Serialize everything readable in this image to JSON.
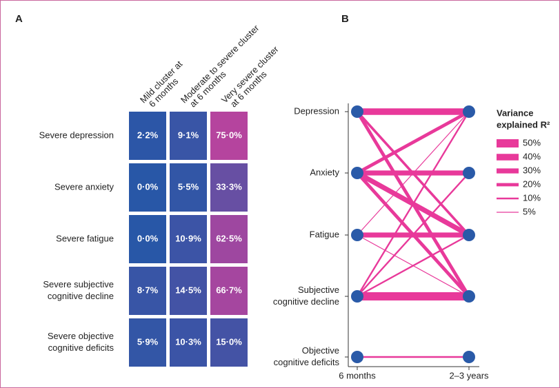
{
  "chart_data": [
    {
      "type": "heatmap",
      "label": "A",
      "columns": [
        [
          "Mild cluster at",
          "6 months"
        ],
        [
          "Moderate to severe cluster",
          "at 6 months"
        ],
        [
          "Very severe cluster",
          "at 6 months"
        ]
      ],
      "rows": [
        [
          "Severe depression"
        ],
        [
          "Severe anxiety"
        ],
        [
          "Severe fatigue"
        ],
        [
          "Severe subjective",
          "cognitive decline"
        ],
        [
          "Severe objective",
          "cognitive deficits"
        ]
      ],
      "values": [
        [
          2.2,
          9.1,
          75.0
        ],
        [
          0.0,
          5.5,
          33.3
        ],
        [
          0.0,
          10.9,
          62.5
        ],
        [
          8.7,
          14.5,
          66.7
        ],
        [
          5.9,
          10.3,
          15.0
        ]
      ],
      "value_labels": [
        [
          "2·2%",
          "9·1%",
          "75·0%"
        ],
        [
          "0·0%",
          "5·5%",
          "33·3%"
        ],
        [
          "0·0%",
          "10·9%",
          "62·5%"
        ],
        [
          "8·7%",
          "14·5%",
          "66·7%"
        ],
        [
          "5·9%",
          "10·3%",
          "15·0%"
        ]
      ],
      "colorscale": [
        "#2857a7",
        "#b5449e"
      ],
      "clim": [
        0,
        75
      ]
    },
    {
      "type": "network",
      "label": "B",
      "x": [
        "6 months",
        "2–3 years"
      ],
      "nodes": [
        [
          "Depression"
        ],
        [
          "Anxiety"
        ],
        [
          "Fatigue"
        ],
        [
          "Subjective",
          "cognitive decline"
        ],
        [
          "Objective",
          "cognitive deficits"
        ]
      ],
      "node_color": "#2a5aa8",
      "edge_color": "#e8399a",
      "edges": [
        {
          "from": 0,
          "to": 0,
          "value": 40
        },
        {
          "from": 1,
          "to": 0,
          "value": 20
        },
        {
          "from": 3,
          "to": 0,
          "value": 10
        },
        {
          "from": 2,
          "to": 0,
          "value": 5
        },
        {
          "from": 1,
          "to": 1,
          "value": 30
        },
        {
          "from": 3,
          "to": 1,
          "value": 10
        },
        {
          "from": 0,
          "to": 2,
          "value": 15
        },
        {
          "from": 1,
          "to": 2,
          "value": 30
        },
        {
          "from": 2,
          "to": 2,
          "value": 30
        },
        {
          "from": 3,
          "to": 2,
          "value": 10
        },
        {
          "from": 0,
          "to": 3,
          "value": 20
        },
        {
          "from": 1,
          "to": 3,
          "value": 20
        },
        {
          "from": 2,
          "to": 3,
          "value": 5
        },
        {
          "from": 3,
          "to": 3,
          "value": 50
        },
        {
          "from": 4,
          "to": 4,
          "value": 10
        }
      ],
      "legend_title": [
        "Variance",
        "explained R²"
      ],
      "legend": [
        {
          "value": 50,
          "label": "50%"
        },
        {
          "value": 40,
          "label": "40%"
        },
        {
          "value": 30,
          "label": "30%"
        },
        {
          "value": 20,
          "label": "20%"
        },
        {
          "value": 10,
          "label": "10%"
        },
        {
          "value": 5,
          "label": "5%"
        }
      ]
    }
  ]
}
